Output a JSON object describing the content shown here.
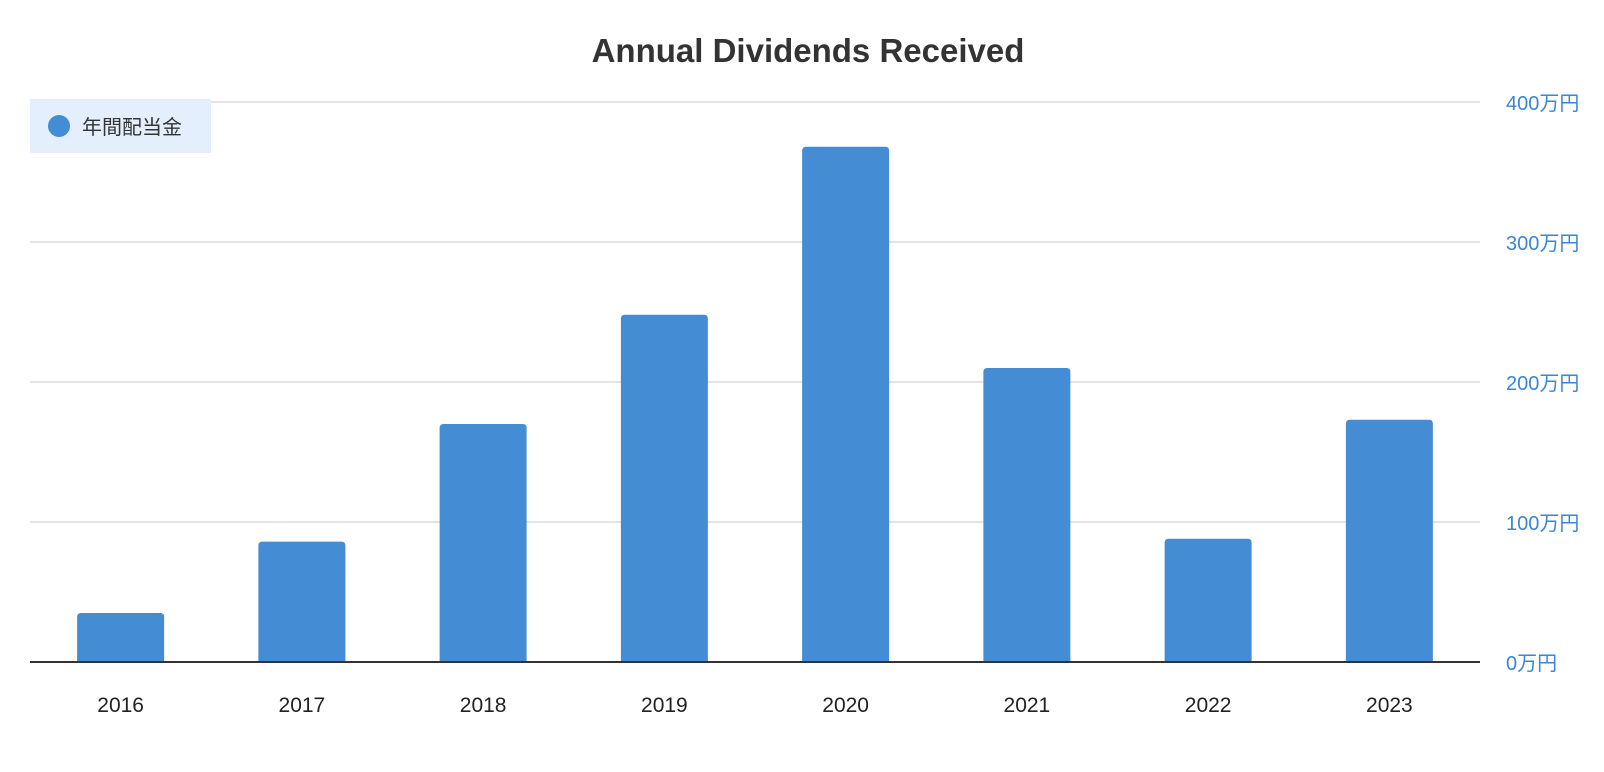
{
  "chart_data": {
    "type": "bar",
    "title": "Annual Dividends Received",
    "xlabel": "",
    "ylabel": "",
    "categories": [
      "2016",
      "2017",
      "2018",
      "2019",
      "2020",
      "2021",
      "2022",
      "2023"
    ],
    "series": [
      {
        "name": "年間配当金",
        "values": [
          35,
          86,
          170,
          248,
          368,
          210,
          88,
          173
        ],
        "color": "#448cd3"
      }
    ],
    "unit": "万円",
    "ylim": [
      0,
      400
    ],
    "yticks": [
      0,
      100,
      200,
      300,
      400
    ],
    "ytick_labels": [
      "0万円",
      "100万円",
      "200万円",
      "300万円",
      "400万円"
    ],
    "y_axis_side": "right",
    "grid": true,
    "legend_position": "top-left",
    "colors": {
      "bar": "#448cd3",
      "tick_label": "#3a86d6",
      "legend_background": "#e3effd",
      "grid": "#e3e3e3",
      "baseline": "#333333"
    }
  }
}
